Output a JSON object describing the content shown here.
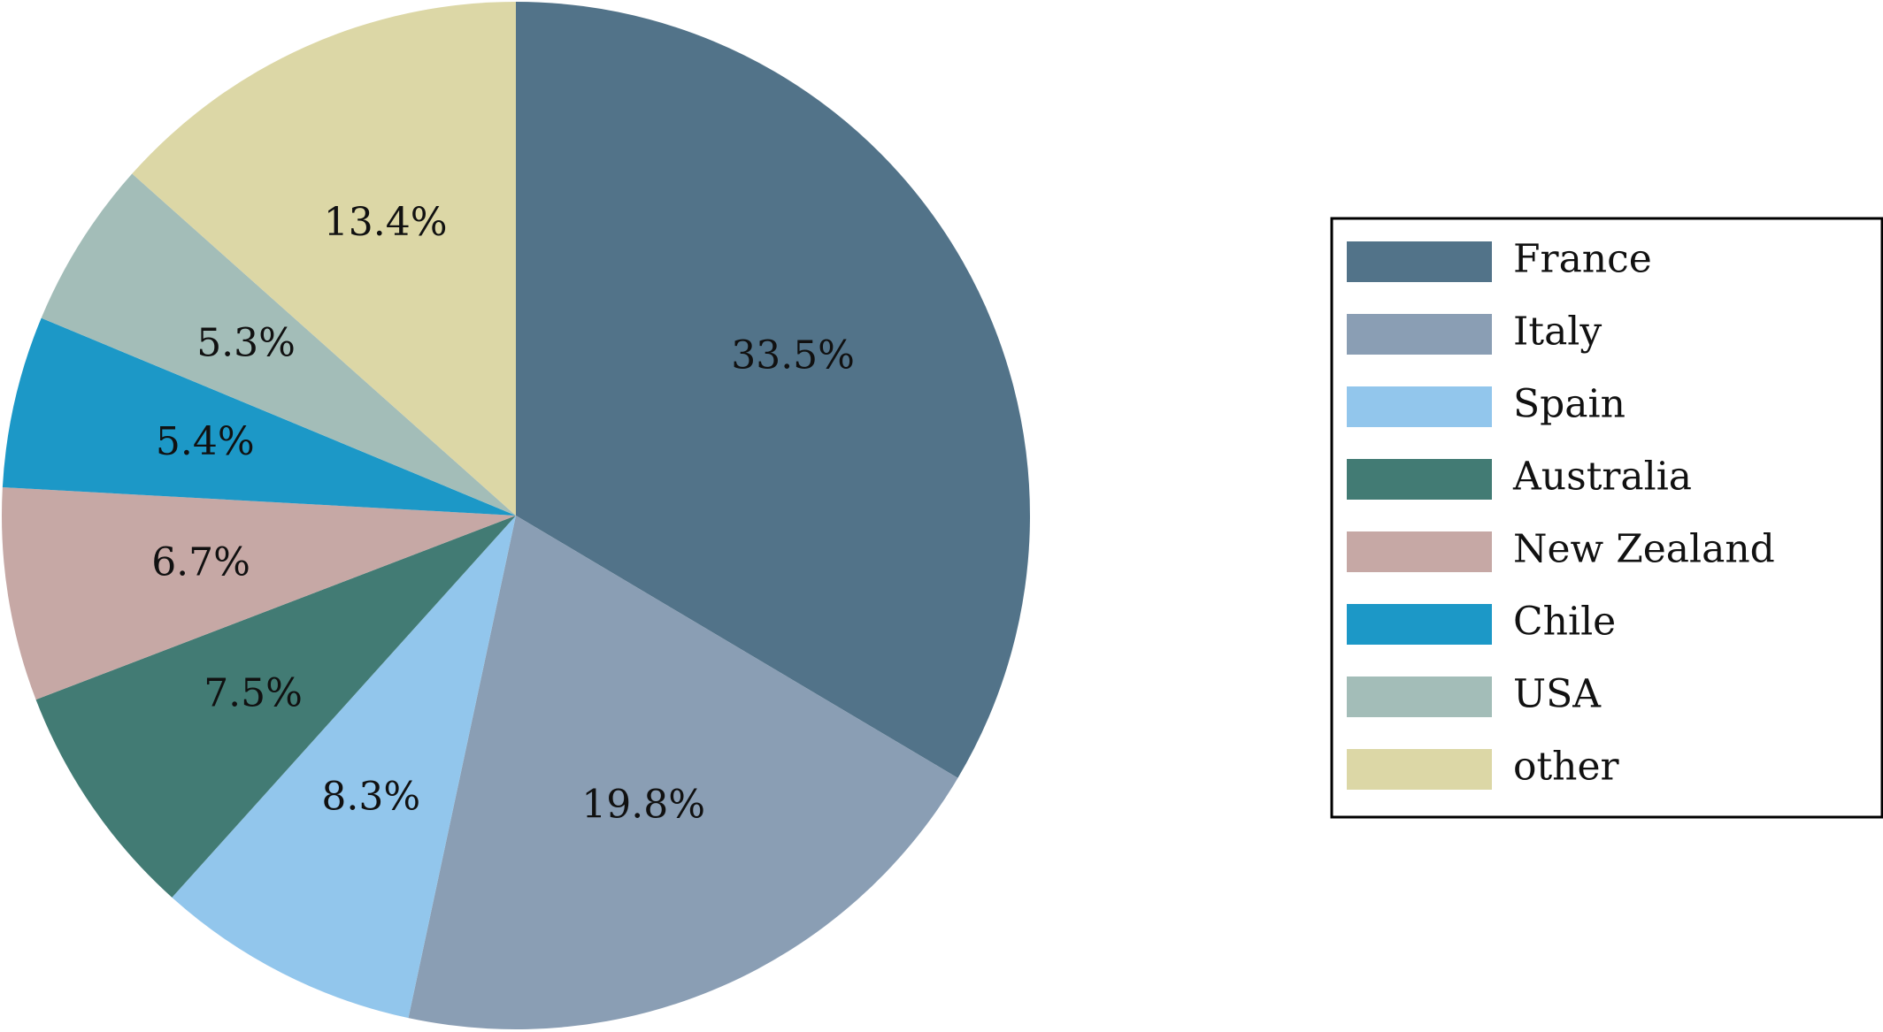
{
  "chart_data": {
    "type": "pie",
    "categories": [
      "France",
      "Italy",
      "Spain",
      "Australia",
      "New Zealand",
      "Chile",
      "USA",
      "other"
    ],
    "values": [
      33.5,
      19.8,
      8.3,
      7.5,
      6.7,
      5.4,
      5.3,
      13.4
    ],
    "labels": [
      "33.5%",
      "19.8%",
      "8.3%",
      "7.5%",
      "6.7%",
      "5.4%",
      "5.3%",
      "13.4%"
    ],
    "colors": [
      "#527389",
      "#8a9eb4",
      "#92c6ec",
      "#427b74",
      "#c6a8a5",
      "#1c98c7",
      "#a3bdb8",
      "#dcd7a6"
    ],
    "start_angle": "12 o'clock",
    "direction": "clockwise",
    "legend": {
      "position": "right",
      "entries": [
        "France",
        "Italy",
        "Spain",
        "Australia",
        "New Zealand",
        "Chile",
        "USA",
        "other"
      ]
    }
  }
}
